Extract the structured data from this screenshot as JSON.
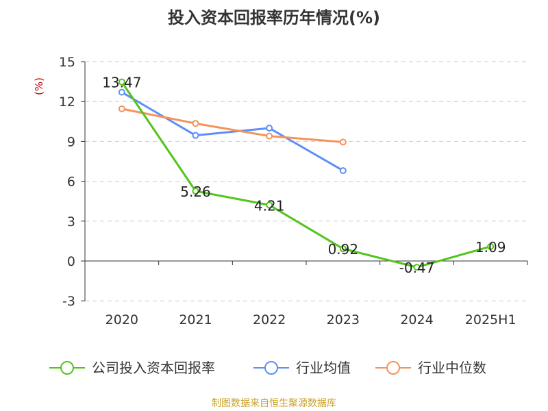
{
  "chart_data": {
    "type": "line",
    "title": "投入资本回报率历年情况(%)",
    "ylabel": "(%)",
    "categories": [
      "2020",
      "2021",
      "2022",
      "2023",
      "2024",
      "2025H1"
    ],
    "y_ticks": [
      15,
      12,
      9,
      6,
      3,
      0,
      -3
    ],
    "ylim": [
      -3,
      15
    ],
    "grid": true,
    "legend_position": "bottom",
    "series": [
      {
        "name": "公司投入资本回报率",
        "color": "#52c41a",
        "values": [
          13.47,
          5.26,
          4.21,
          0.92,
          -0.47,
          1.09
        ],
        "labels": [
          "13.47",
          "5.26",
          "4.21",
          "0.92",
          "-0.47",
          "1.09"
        ]
      },
      {
        "name": "行业均值",
        "color": "#5b8ff9",
        "values": [
          12.7,
          9.45,
          10.0,
          6.8,
          null,
          null
        ]
      },
      {
        "name": "行业中位数",
        "color": "#f6925b",
        "values": [
          11.45,
          10.35,
          9.4,
          8.95,
          null,
          null
        ]
      }
    ]
  },
  "footer": {
    "source": "制图数据来自恒生聚源数据库"
  }
}
